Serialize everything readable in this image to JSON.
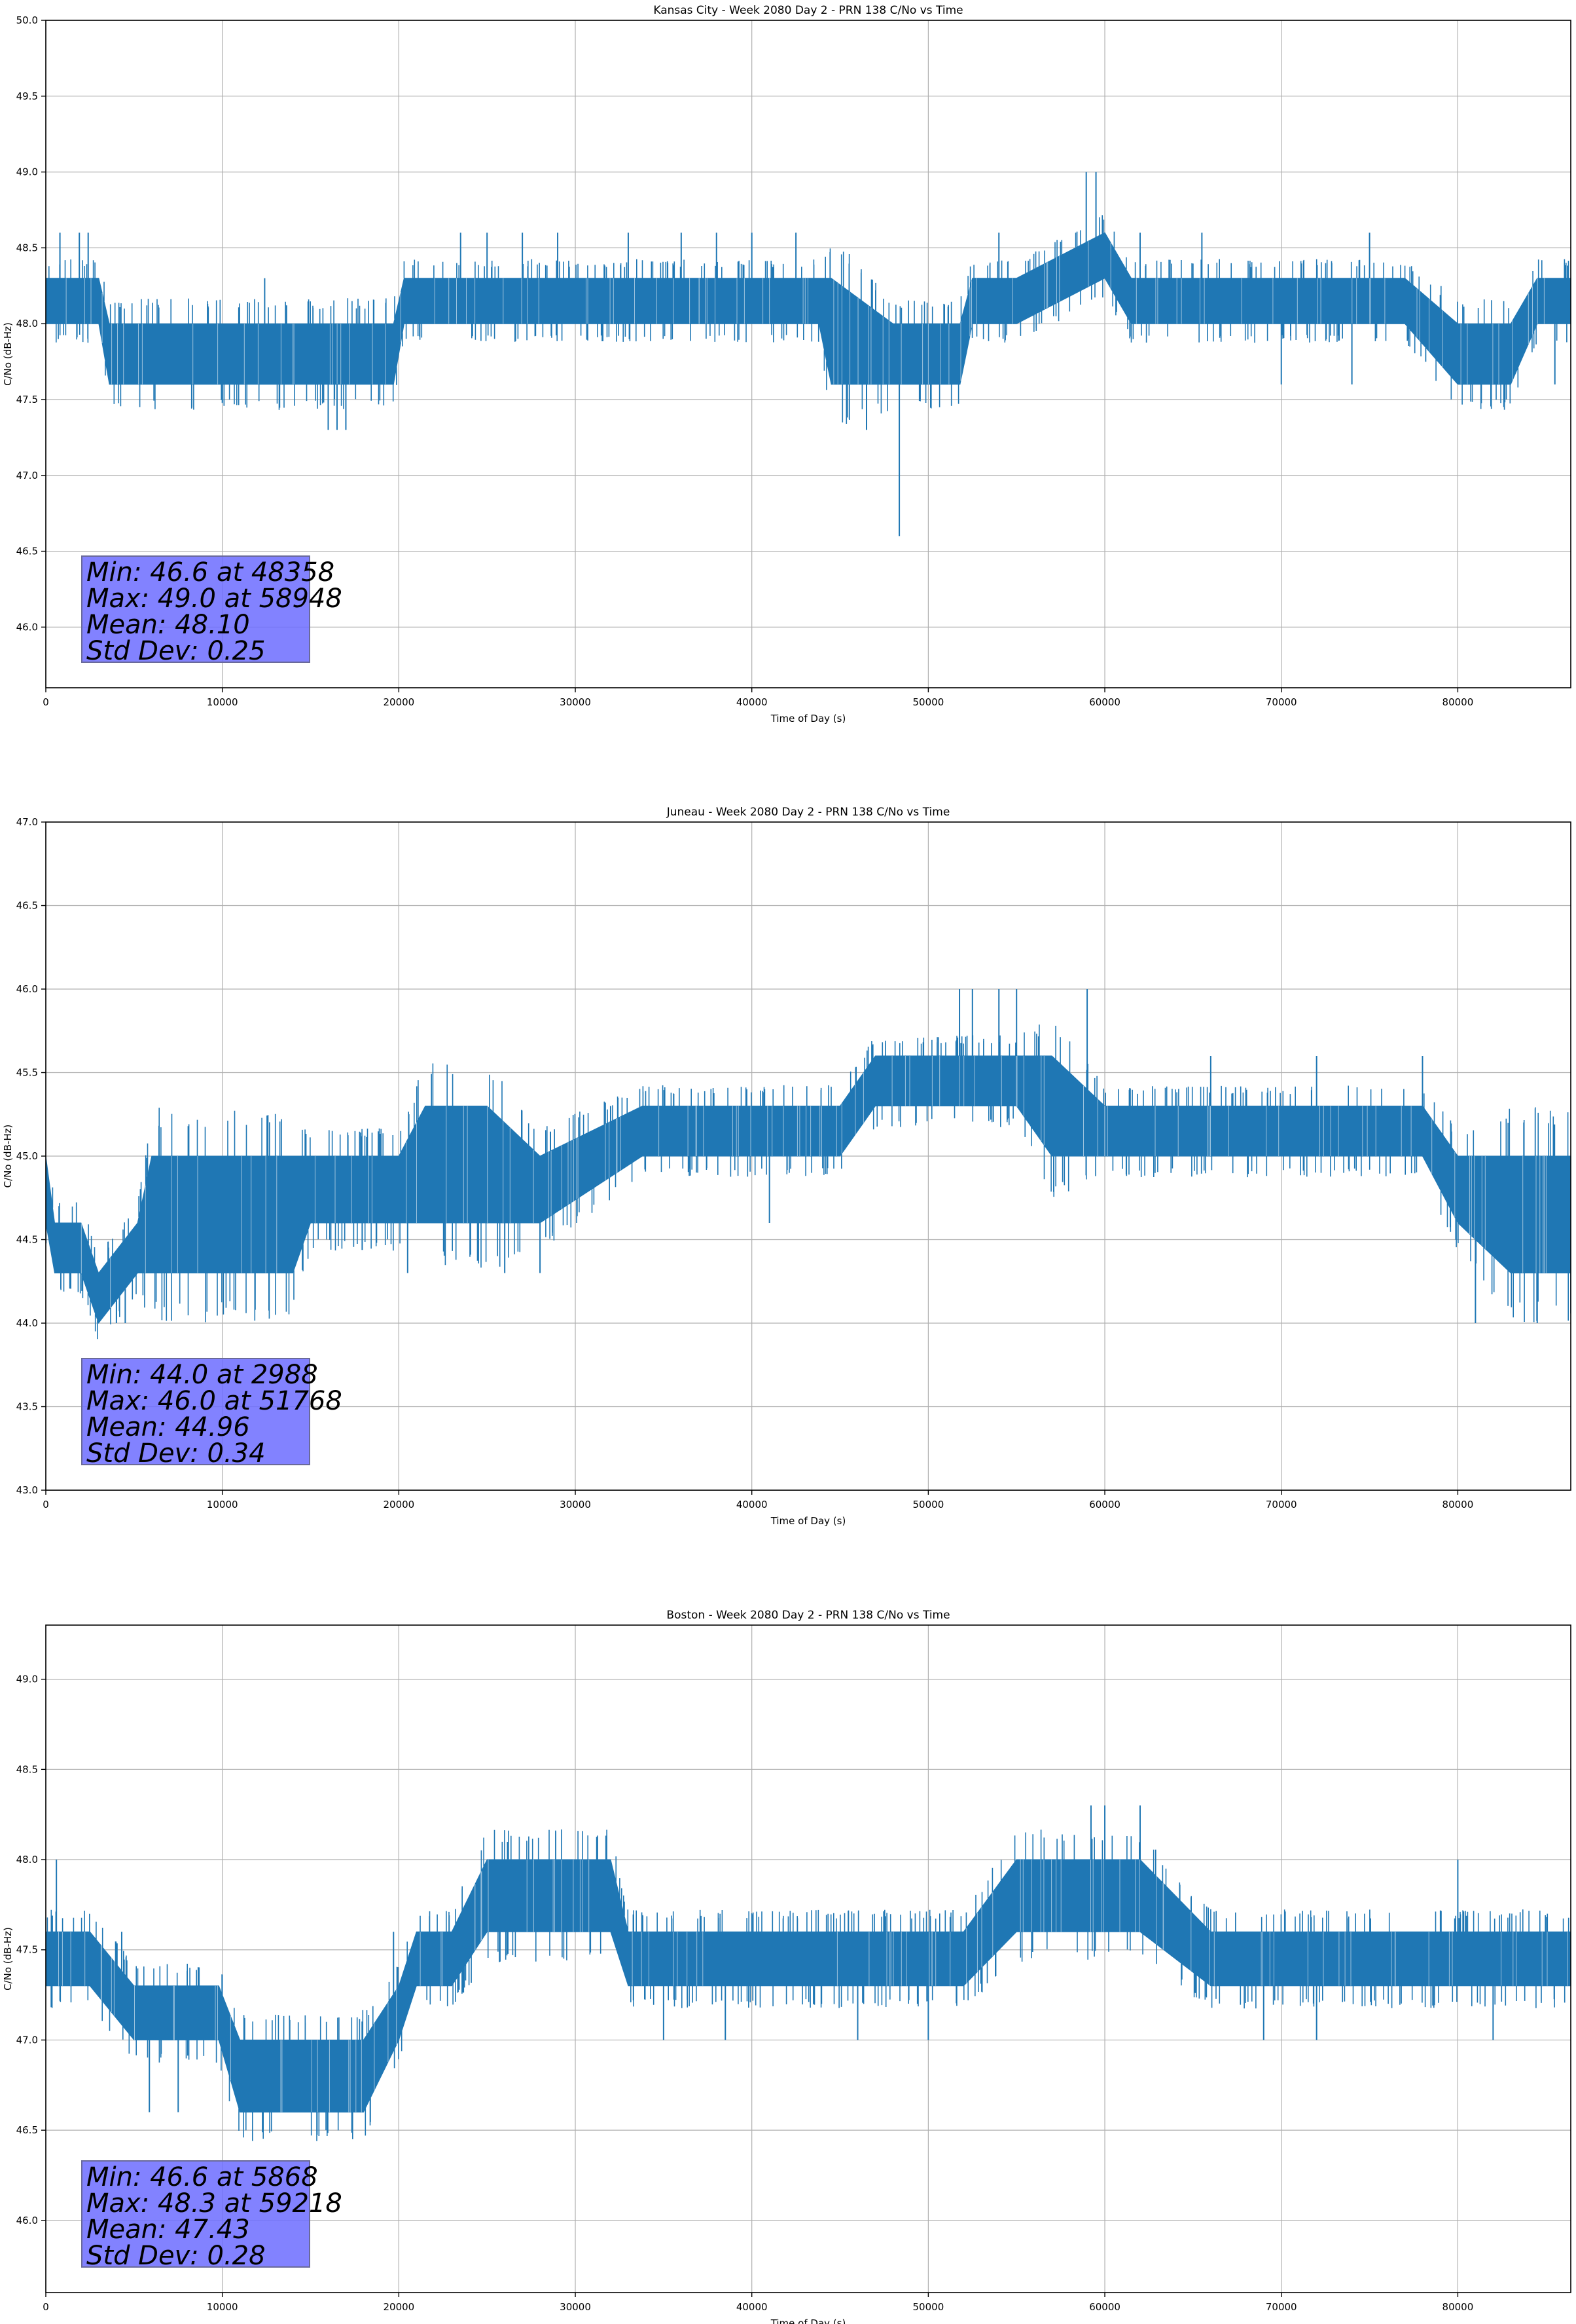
{
  "colors": {
    "series": "#1f77b4",
    "grid": "#b0b0b0",
    "stats_box": "#7f7fff"
  },
  "chart_data": [
    {
      "type": "line",
      "title": "Kansas City - Week 2080 Day 2 - PRN 138 C/No vs Time",
      "xlabel": "Time of Day (s)",
      "ylabel": "C/No (dB-Hz)",
      "xlim": [
        0,
        86400
      ],
      "ylim": [
        45.6,
        50.0
      ],
      "xticks": [
        0,
        10000,
        20000,
        30000,
        40000,
        50000,
        60000,
        70000,
        80000
      ],
      "xtick_labels": [
        "0",
        "10000",
        "20000",
        "30000",
        "40000",
        "50000",
        "60000",
        "70000",
        "80000"
      ],
      "yticks": [
        46.0,
        46.5,
        47.0,
        47.5,
        48.0,
        48.5,
        49.0,
        49.5,
        50.0
      ],
      "ytick_labels": [
        "46.0",
        "46.5",
        "47.0",
        "47.5",
        "48.0",
        "48.5",
        "49.0",
        "49.5",
        "50.0"
      ],
      "grid": true,
      "series": [
        {
          "x": [
            0,
            3000,
            3600,
            4500,
            10000,
            15000,
            19700,
            20300,
            23000,
            30000,
            35000,
            40000,
            43800,
            44500,
            48000,
            51800,
            52500,
            55000,
            60000,
            61500,
            63000,
            70000,
            75000,
            77000,
            80000,
            83000,
            84500,
            86400
          ],
          "y": [
            48.15,
            48.2,
            48.0,
            47.8,
            47.8,
            47.8,
            47.8,
            48.1,
            48.15,
            48.15,
            48.15,
            48.2,
            48.15,
            48.0,
            47.85,
            47.9,
            48.15,
            48.3,
            48.35,
            48.2,
            48.15,
            48.15,
            48.15,
            48.1,
            47.9,
            47.85,
            48.15,
            48.15
          ],
          "band_low": [
            48.0,
            48.0,
            47.6,
            47.6,
            47.6,
            47.6,
            47.6,
            48.0,
            48.0,
            48.0,
            48.0,
            48.0,
            48.0,
            47.6,
            47.6,
            47.6,
            48.0,
            48.0,
            48.3,
            48.0,
            48.0,
            48.0,
            48.0,
            48.0,
            47.6,
            47.6,
            48.0,
            48.0
          ],
          "band_high": [
            48.3,
            48.3,
            48.0,
            48.0,
            48.0,
            48.0,
            48.0,
            48.3,
            48.3,
            48.3,
            48.3,
            48.3,
            48.3,
            48.3,
            48.0,
            48.0,
            48.3,
            48.3,
            48.6,
            48.3,
            48.3,
            48.3,
            48.3,
            48.3,
            48.0,
            48.0,
            48.3,
            48.3
          ],
          "spikes": [
            {
              "x": 800,
              "y": 48.6
            },
            {
              "x": 1900,
              "y": 48.6
            },
            {
              "x": 2400,
              "y": 48.6
            },
            {
              "x": 12400,
              "y": 48.3
            },
            {
              "x": 16000,
              "y": 47.3
            },
            {
              "x": 16500,
              "y": 47.3
            },
            {
              "x": 17000,
              "y": 47.3
            },
            {
              "x": 23500,
              "y": 48.6
            },
            {
              "x": 25000,
              "y": 48.6
            },
            {
              "x": 27000,
              "y": 48.6
            },
            {
              "x": 29000,
              "y": 48.6
            },
            {
              "x": 33000,
              "y": 48.6
            },
            {
              "x": 36000,
              "y": 48.6
            },
            {
              "x": 38000,
              "y": 48.6
            },
            {
              "x": 40000,
              "y": 48.6
            },
            {
              "x": 42500,
              "y": 48.6
            },
            {
              "x": 46500,
              "y": 47.3
            },
            {
              "x": 48358,
              "y": 46.6
            },
            {
              "x": 54000,
              "y": 48.6
            },
            {
              "x": 58948,
              "y": 49.0
            },
            {
              "x": 59500,
              "y": 49.0
            },
            {
              "x": 62000,
              "y": 48.6
            },
            {
              "x": 65500,
              "y": 48.6
            },
            {
              "x": 70000,
              "y": 47.6
            },
            {
              "x": 74000,
              "y": 47.6
            },
            {
              "x": 75000,
              "y": 48.6
            },
            {
              "x": 85500,
              "y": 47.6
            }
          ]
        }
      ],
      "stats": [
        "Min: 46.6 at 48358",
        "Max: 49.0 at 58948",
        "Mean: 48.10",
        "Std Dev: 0.25"
      ]
    },
    {
      "type": "line",
      "title": "Juneau - Week 2080 Day 2 - PRN 138 C/No vs Time",
      "xlabel": "Time of Day (s)",
      "ylabel": "C/No (dB-Hz)",
      "xlim": [
        0,
        86400
      ],
      "ylim": [
        43.0,
        47.0
      ],
      "xticks": [
        0,
        10000,
        20000,
        30000,
        40000,
        50000,
        60000,
        70000,
        80000
      ],
      "xtick_labels": [
        "0",
        "10000",
        "20000",
        "30000",
        "40000",
        "50000",
        "60000",
        "70000",
        "80000"
      ],
      "yticks": [
        43.0,
        43.5,
        44.0,
        44.5,
        45.0,
        45.5,
        46.0,
        46.5,
        47.0
      ],
      "ytick_labels": [
        "43.0",
        "43.5",
        "44.0",
        "44.5",
        "45.0",
        "45.5",
        "46.0",
        "46.5",
        "47.0"
      ],
      "grid": true,
      "series": [
        {
          "x": [
            0,
            500,
            2000,
            2988,
            5200,
            6000,
            10000,
            14000,
            15000,
            20000,
            21500,
            25000,
            28000,
            33800,
            35000,
            40000,
            45000,
            47000,
            50000,
            55000,
            57000,
            60000,
            65000,
            70000,
            75000,
            78000,
            80000,
            83000,
            86400
          ],
          "y": [
            44.8,
            44.5,
            44.5,
            44.2,
            44.5,
            44.7,
            44.7,
            44.6,
            44.8,
            44.8,
            45.0,
            45.0,
            44.8,
            45.15,
            45.15,
            45.15,
            45.15,
            45.45,
            45.45,
            45.5,
            45.35,
            45.15,
            45.15,
            45.15,
            45.15,
            45.15,
            44.8,
            44.65,
            44.7
          ],
          "band_low": [
            44.6,
            44.3,
            44.3,
            44.0,
            44.3,
            44.3,
            44.3,
            44.3,
            44.6,
            44.6,
            44.6,
            44.6,
            44.6,
            45.0,
            45.0,
            45.0,
            45.0,
            45.3,
            45.3,
            45.3,
            45.0,
            45.0,
            45.0,
            45.0,
            45.0,
            45.0,
            44.6,
            44.3,
            44.3
          ],
          "band_high": [
            45.0,
            44.6,
            44.6,
            44.3,
            44.6,
            45.0,
            45.0,
            45.0,
            45.0,
            45.0,
            45.3,
            45.3,
            45.0,
            45.3,
            45.3,
            45.3,
            45.3,
            45.6,
            45.6,
            45.6,
            45.6,
            45.3,
            45.3,
            45.3,
            45.3,
            45.3,
            45.0,
            45.0,
            45.0
          ],
          "spikes": [
            {
              "x": 2988,
              "y": 44.0
            },
            {
              "x": 4000,
              "y": 44.0
            },
            {
              "x": 4500,
              "y": 44.0
            },
            {
              "x": 7000,
              "y": 45.0
            },
            {
              "x": 20500,
              "y": 44.3
            },
            {
              "x": 26000,
              "y": 44.3
            },
            {
              "x": 28000,
              "y": 44.3
            },
            {
              "x": 32000,
              "y": 45.3
            },
            {
              "x": 41000,
              "y": 44.6
            },
            {
              "x": 51768,
              "y": 46.0
            },
            {
              "x": 52500,
              "y": 46.0
            },
            {
              "x": 54000,
              "y": 46.0
            },
            {
              "x": 55000,
              "y": 46.0
            },
            {
              "x": 59000,
              "y": 46.0
            },
            {
              "x": 66000,
              "y": 45.6
            },
            {
              "x": 72000,
              "y": 45.6
            },
            {
              "x": 78000,
              "y": 45.6
            },
            {
              "x": 81000,
              "y": 44.0
            },
            {
              "x": 84500,
              "y": 44.0
            }
          ]
        }
      ],
      "stats": [
        "Min: 44.0 at 2988",
        "Max: 46.0 at 51768",
        "Mean: 44.96",
        "Std Dev: 0.34"
      ]
    },
    {
      "type": "line",
      "title": "Boston - Week 2080 Day 2 - PRN 138 C/No vs Time",
      "xlabel": "Time of Day (s)",
      "ylabel": "C/No (dB-Hz)",
      "xlim": [
        0,
        86400
      ],
      "ylim": [
        45.6,
        49.3
      ],
      "xticks": [
        0,
        10000,
        20000,
        30000,
        40000,
        50000,
        60000,
        70000,
        80000
      ],
      "xtick_labels": [
        "0",
        "10000",
        "20000",
        "30000",
        "40000",
        "50000",
        "60000",
        "70000",
        "80000"
      ],
      "yticks": [
        46.0,
        46.5,
        47.0,
        47.5,
        48.0,
        48.5,
        49.0
      ],
      "ytick_labels": [
        "46.0",
        "46.5",
        "47.0",
        "47.5",
        "48.0",
        "48.5",
        "49.0"
      ],
      "grid": true,
      "series": [
        {
          "x": [
            0,
            2500,
            5000,
            7000,
            9800,
            11000,
            15000,
            18000,
            20000,
            21000,
            23000,
            25000,
            30000,
            32000,
            33000,
            35000,
            40000,
            45000,
            48000,
            52000,
            55000,
            58000,
            60000,
            62000,
            66000,
            67000,
            70000,
            75000,
            80000,
            86400
          ],
          "y": [
            47.45,
            47.3,
            47.15,
            47.15,
            47.1,
            46.8,
            46.8,
            46.8,
            47.3,
            47.45,
            47.5,
            47.8,
            47.8,
            47.7,
            47.45,
            47.45,
            47.45,
            47.45,
            47.45,
            47.6,
            47.75,
            47.8,
            47.8,
            47.7,
            47.5,
            47.45,
            47.45,
            47.45,
            47.45,
            47.45
          ],
          "band_low": [
            47.3,
            47.3,
            47.0,
            47.0,
            47.0,
            46.6,
            46.6,
            46.6,
            47.0,
            47.3,
            47.3,
            47.6,
            47.6,
            47.6,
            47.3,
            47.3,
            47.3,
            47.3,
            47.3,
            47.3,
            47.6,
            47.6,
            47.6,
            47.6,
            47.3,
            47.3,
            47.3,
            47.3,
            47.3,
            47.3
          ],
          "band_high": [
            47.6,
            47.6,
            47.3,
            47.3,
            47.3,
            47.0,
            47.0,
            47.0,
            47.3,
            47.6,
            47.6,
            48.0,
            48.0,
            48.0,
            47.6,
            47.6,
            47.6,
            47.6,
            47.6,
            47.6,
            48.0,
            48.0,
            48.0,
            48.0,
            47.6,
            47.6,
            47.6,
            47.6,
            47.6,
            47.6
          ],
          "spikes": [
            {
              "x": 600,
              "y": 48.0
            },
            {
              "x": 4300,
              "y": 47.6
            },
            {
              "x": 5868,
              "y": 46.6
            },
            {
              "x": 7500,
              "y": 46.6
            },
            {
              "x": 19700,
              "y": 47.6
            },
            {
              "x": 35000,
              "y": 47.0
            },
            {
              "x": 38500,
              "y": 47.0
            },
            {
              "x": 46000,
              "y": 47.0
            },
            {
              "x": 50000,
              "y": 47.0
            },
            {
              "x": 59218,
              "y": 48.3
            },
            {
              "x": 60000,
              "y": 48.3
            },
            {
              "x": 62000,
              "y": 48.3
            },
            {
              "x": 69000,
              "y": 47.0
            },
            {
              "x": 72000,
              "y": 47.0
            },
            {
              "x": 80000,
              "y": 48.0
            },
            {
              "x": 82000,
              "y": 47.0
            }
          ]
        }
      ],
      "stats": [
        "Min: 46.6 at 5868",
        "Max: 48.3 at 59218",
        "Mean: 47.43",
        "Std Dev: 0.28"
      ]
    }
  ]
}
